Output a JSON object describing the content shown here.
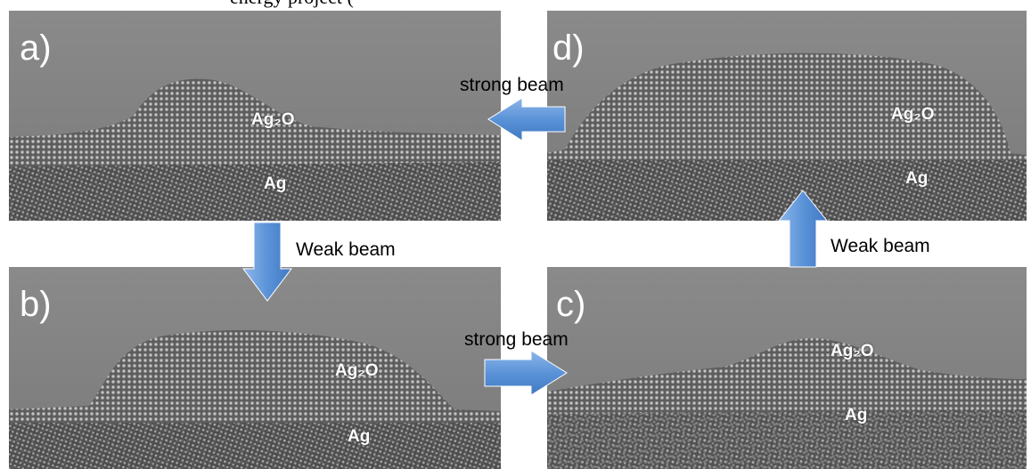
{
  "header_fragment": "energy project (                    ",
  "panels": {
    "a": {
      "letter": "a)",
      "ag2o": "Ag₂O",
      "ag": "Ag"
    },
    "b": {
      "letter": "b)",
      "ag2o": "Ag₂O",
      "ag": "Ag"
    },
    "c": {
      "letter": "c)",
      "ag2o": "Ag₂O",
      "ag": "Ag"
    },
    "d": {
      "letter": "d)",
      "ag2o": "Ag₂O",
      "ag": "Ag"
    }
  },
  "beams": {
    "d_to_a": "strong beam",
    "a_to_b": "Weak beam",
    "b_to_c": "strong beam",
    "c_to_d": "Weak beam"
  },
  "colors": {
    "arrow_fill": "#5b93d8",
    "arrow_light": "#9ec2ee",
    "background_gray": "#7d7d7d"
  }
}
